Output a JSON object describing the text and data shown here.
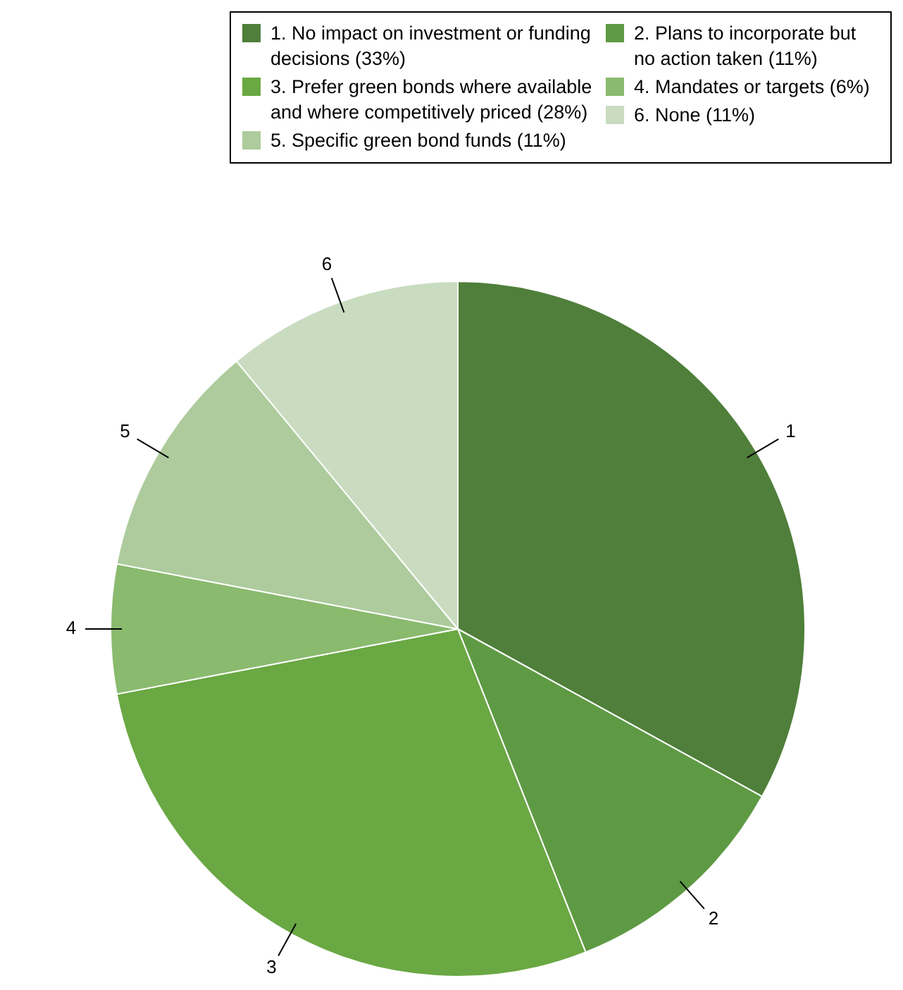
{
  "chart_data": {
    "type": "pie",
    "categories": [
      "1. No impact on investment or funding decisions (33%)",
      "2. Plans to incorporate but no action taken (11%)",
      "3. Prefer green bonds where available and where competitively priced (28%)",
      "4. Mandates or targets (6%)",
      "5. Specific green bond funds (11%)",
      "6. None (11%)"
    ],
    "values": [
      33,
      11,
      28,
      6,
      11,
      11
    ],
    "colors": [
      "#4f7f3a",
      "#5e9a44",
      "#6aa843",
      "#8aba6e",
      "#adcb9c",
      "#c9dcc0"
    ],
    "annotations": [
      "1",
      "2",
      "3",
      "4",
      "5",
      "6"
    ],
    "legend": "top right"
  }
}
